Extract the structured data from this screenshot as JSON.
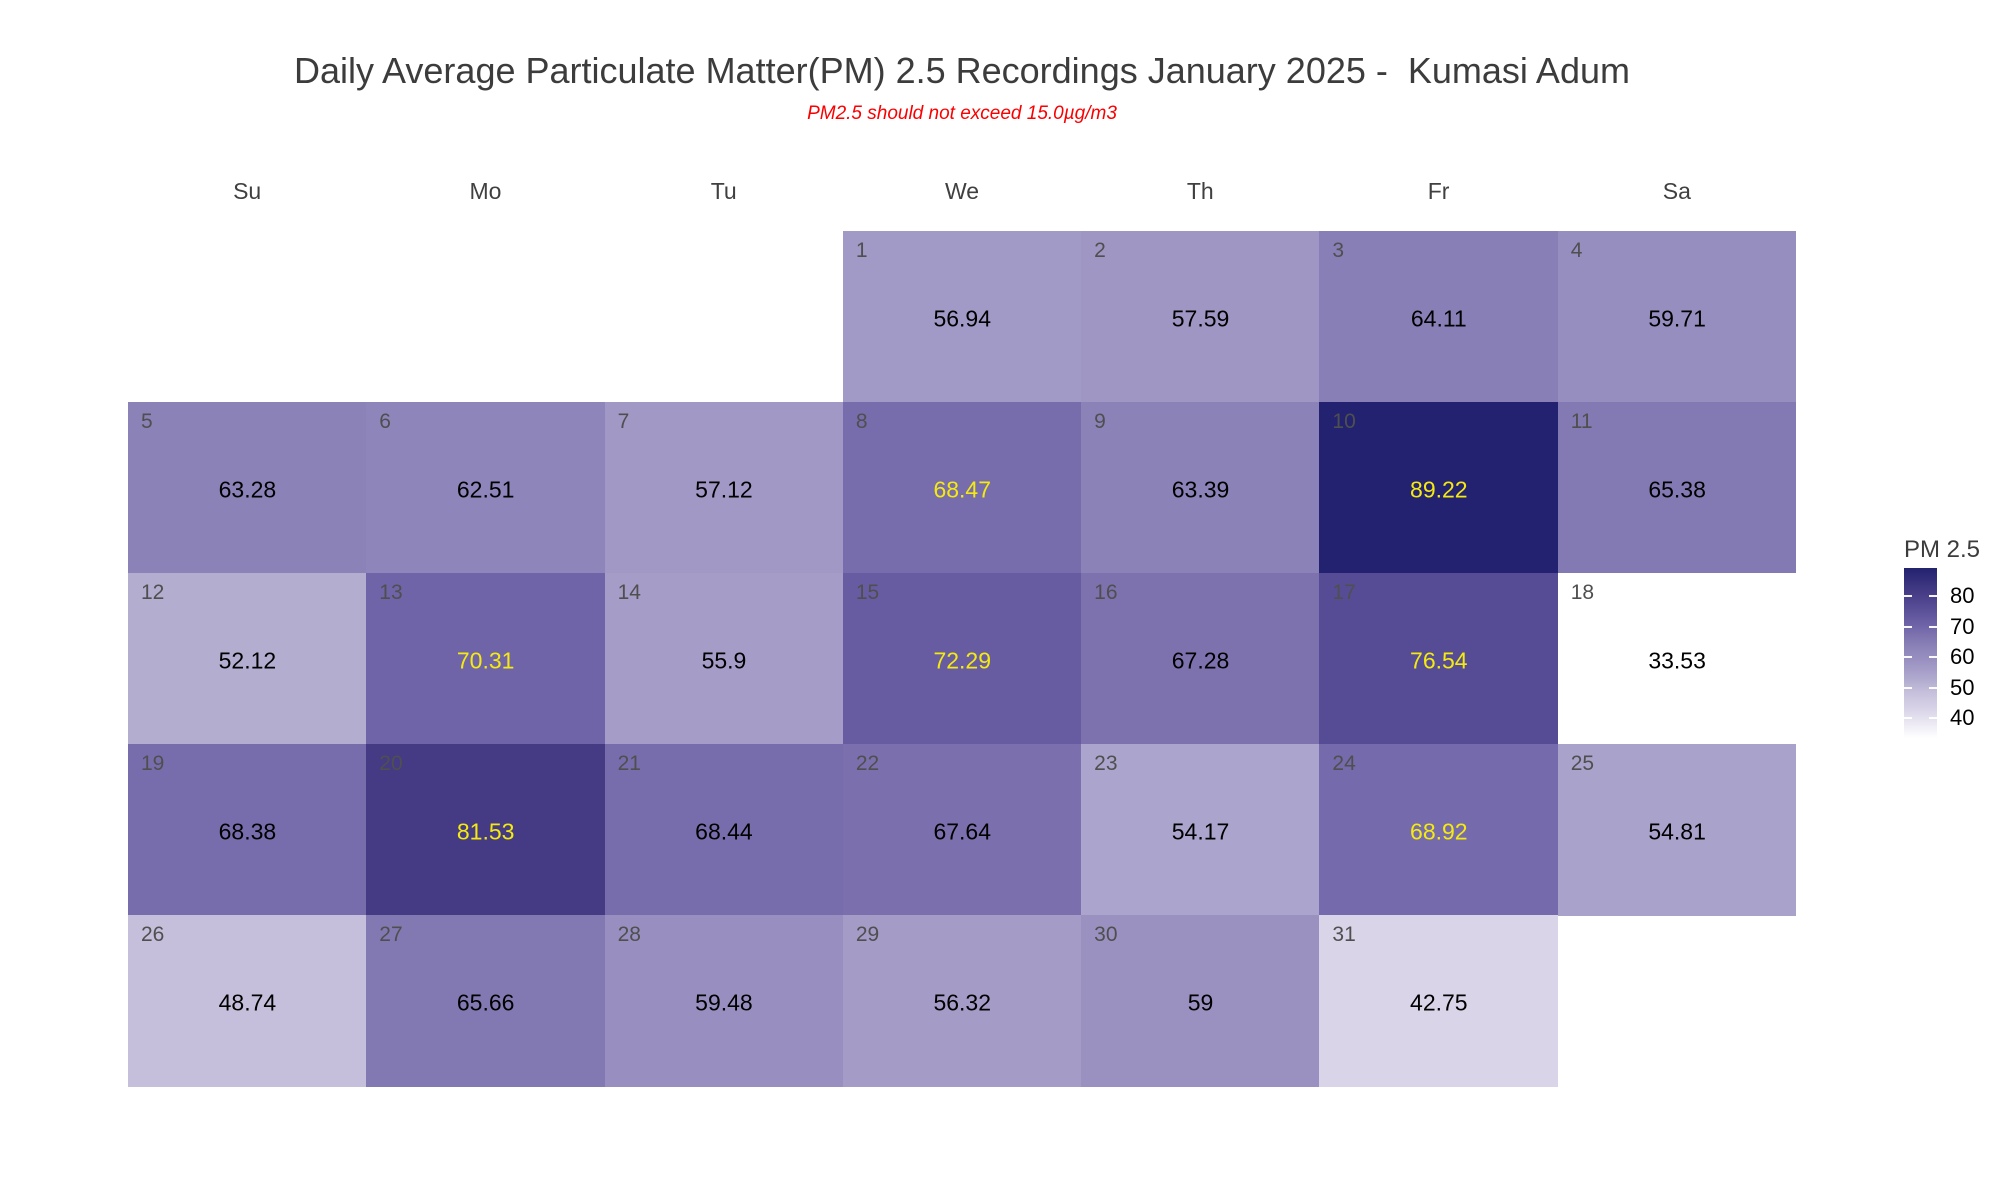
{
  "title": "Daily Average Particulate Matter(PM) 2.5 Recordings January 2025 -  Kumasi Adum",
  "subtitle": "PM2.5 should not exceed 15.0µg/m3",
  "weekday_headers": [
    "Su",
    "Mo",
    "Tu",
    "We",
    "Th",
    "Fr",
    "Sa"
  ],
  "legend": {
    "title": "PM 2.5",
    "ticks": [
      80,
      70,
      60,
      50,
      40
    ]
  },
  "colors": {
    "title": "#3c3c3c",
    "subtitle": "#fb0000",
    "weekday_header": "#404040",
    "day_number": "#4f4f4f",
    "value_text_low": "#000000",
    "value_text_high": "#f5ea0f"
  },
  "scale": {
    "min": 33.53,
    "max": 89.22,
    "yellow_text_threshold": 68.45,
    "colormap_stops": [
      {
        "t": 0.0,
        "color": "#ffffff"
      },
      {
        "t": 0.166,
        "color": "#d9d4e8"
      },
      {
        "t": 0.273,
        "color": "#c5bfdb"
      },
      {
        "t": 0.334,
        "color": "#b3add0"
      },
      {
        "t": 0.402,
        "color": "#a59dc8"
      },
      {
        "t": 0.466,
        "color": "#988fc0"
      },
      {
        "t": 0.536,
        "color": "#8b82b8"
      },
      {
        "t": 0.606,
        "color": "#7d72ae"
      },
      {
        "t": 0.66,
        "color": "#6f64a8"
      },
      {
        "t": 0.772,
        "color": "#564c95"
      },
      {
        "t": 0.862,
        "color": "#443b84"
      },
      {
        "t": 1.0,
        "color": "#232270"
      }
    ]
  },
  "chart_data": {
    "type": "heatmap",
    "subtype": "calendar",
    "title": "Daily Average Particulate Matter(PM) 2.5 Recordings January 2025 -  Kumasi Adum",
    "subtitle": "PM2.5 should not exceed 15.0µg/m3",
    "columns": [
      "Su",
      "Mo",
      "Tu",
      "We",
      "Th",
      "Fr",
      "Sa"
    ],
    "legend_title": "PM 2.5",
    "legend_ticks": [
      80,
      70,
      60,
      50,
      40
    ],
    "value_range": [
      33.53,
      89.22
    ],
    "weeks": [
      [
        {
          "day": 1,
          "col": 3,
          "value": 56.94
        },
        {
          "day": 2,
          "col": 4,
          "value": 57.59
        },
        {
          "day": 3,
          "col": 5,
          "value": 64.11
        },
        {
          "day": 4,
          "col": 6,
          "value": 59.71
        }
      ],
      [
        {
          "day": 5,
          "col": 0,
          "value": 63.28
        },
        {
          "day": 6,
          "col": 1,
          "value": 62.51
        },
        {
          "day": 7,
          "col": 2,
          "value": 57.12
        },
        {
          "day": 8,
          "col": 3,
          "value": 68.47
        },
        {
          "day": 9,
          "col": 4,
          "value": 63.39
        },
        {
          "day": 10,
          "col": 5,
          "value": 89.22
        },
        {
          "day": 11,
          "col": 6,
          "value": 65.38
        }
      ],
      [
        {
          "day": 12,
          "col": 0,
          "value": 52.12
        },
        {
          "day": 13,
          "col": 1,
          "value": 70.31
        },
        {
          "day": 14,
          "col": 2,
          "value": 55.9
        },
        {
          "day": 15,
          "col": 3,
          "value": 72.29
        },
        {
          "day": 16,
          "col": 4,
          "value": 67.28
        },
        {
          "day": 17,
          "col": 5,
          "value": 76.54
        },
        {
          "day": 18,
          "col": 6,
          "value": 33.53
        }
      ],
      [
        {
          "day": 19,
          "col": 0,
          "value": 68.38
        },
        {
          "day": 20,
          "col": 1,
          "value": 81.53
        },
        {
          "day": 21,
          "col": 2,
          "value": 68.44
        },
        {
          "day": 22,
          "col": 3,
          "value": 67.64
        },
        {
          "day": 23,
          "col": 4,
          "value": 54.17
        },
        {
          "day": 24,
          "col": 5,
          "value": 68.92
        },
        {
          "day": 25,
          "col": 6,
          "value": 54.81
        }
      ],
      [
        {
          "day": 26,
          "col": 0,
          "value": 48.74
        },
        {
          "day": 27,
          "col": 1,
          "value": 65.66
        },
        {
          "day": 28,
          "col": 2,
          "value": 59.48
        },
        {
          "day": 29,
          "col": 3,
          "value": 56.32
        },
        {
          "day": 30,
          "col": 4,
          "value": 59
        },
        {
          "day": 31,
          "col": 5,
          "value": 42.75
        }
      ]
    ]
  }
}
